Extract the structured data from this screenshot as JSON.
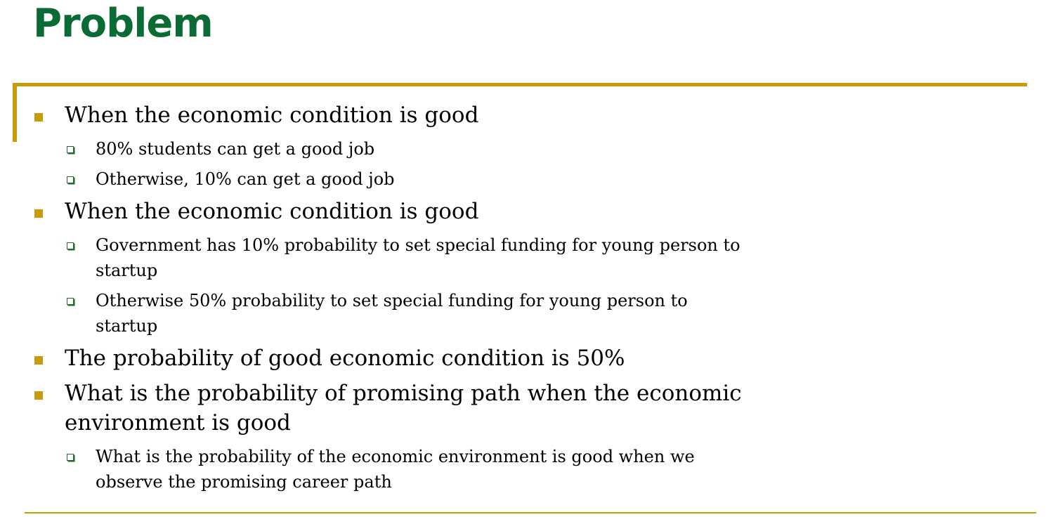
{
  "slide": {
    "title": "Problem",
    "colors": {
      "title": "#0a6b35",
      "accent_gold": "#c99a0a",
      "sub_bullet_green": "#1f6b2a"
    },
    "bullets": [
      {
        "icon": "square-bullet-icon",
        "text": "When the economic condition is good",
        "children": [
          {
            "icon": "box-bullet-icon",
            "lines": [
              "80% students can get a good job"
            ]
          },
          {
            "icon": "box-bullet-icon",
            "lines": [
              "Otherwise, 10% can get a good job"
            ]
          }
        ]
      },
      {
        "icon": "square-bullet-icon",
        "text": "When the economic condition is good",
        "children": [
          {
            "icon": "box-bullet-icon",
            "lines": [
              "Government has 10% probability to set special funding for young person to",
              "startup"
            ]
          },
          {
            "icon": "box-bullet-icon",
            "lines": [
              "Otherwise 50% probability to set special funding for young person to",
              "startup"
            ]
          }
        ]
      },
      {
        "icon": "square-bullet-icon",
        "text": "The probability of good economic condition is 50%",
        "children": []
      },
      {
        "icon": "square-bullet-icon",
        "lines": [
          "What is the probability of promising path when the economic",
          "environment is good"
        ],
        "children": [
          {
            "icon": "box-bullet-icon",
            "lines": [
              "What is the probability of the economic environment is good when we",
              "observe the promising career path"
            ]
          }
        ]
      }
    ]
  }
}
